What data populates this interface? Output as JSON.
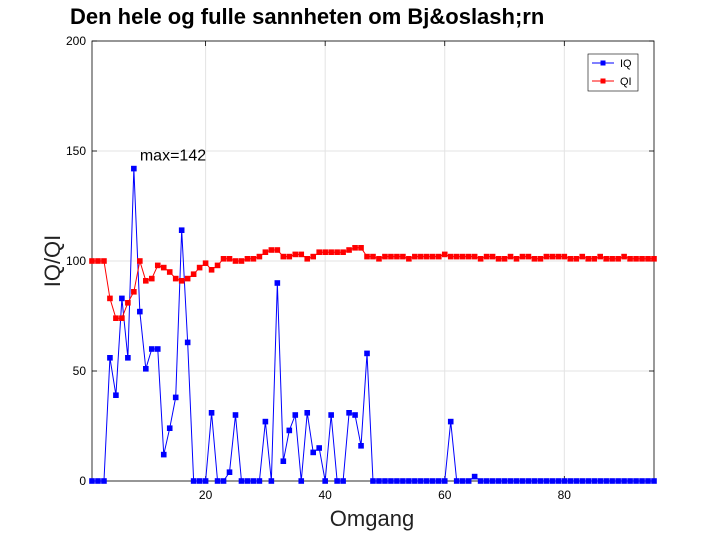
{
  "chart_data": {
    "type": "line",
    "title": "Den hele og fulle sannheten om Bj&oslash;rn",
    "xlabel": "Omgang",
    "ylabel": "IQ/QI",
    "xlim": [
      1,
      95
    ],
    "ylim": [
      0,
      200
    ],
    "xticks": [
      20,
      40,
      60,
      80
    ],
    "yticks": [
      0,
      50,
      100,
      150,
      200
    ],
    "grid": true,
    "legend_position": "top-right",
    "annotation": {
      "text": "max=142",
      "x": 8,
      "y": 142
    },
    "series": [
      {
        "name": "IQ",
        "color": "#0000ff",
        "marker": "square",
        "x": [
          1,
          2,
          3,
          4,
          5,
          6,
          7,
          8,
          9,
          10,
          11,
          12,
          13,
          14,
          15,
          16,
          17,
          18,
          19,
          20,
          21,
          22,
          23,
          24,
          25,
          26,
          27,
          28,
          29,
          30,
          31,
          32,
          33,
          34,
          35,
          36,
          37,
          38,
          39,
          40,
          41,
          42,
          43,
          44,
          45,
          46,
          47,
          48,
          49,
          50,
          51,
          52,
          53,
          54,
          55,
          56,
          57,
          58,
          59,
          60,
          61,
          62,
          63,
          64,
          65,
          66,
          67,
          68,
          69,
          70,
          71,
          72,
          73,
          74,
          75,
          76,
          77,
          78,
          79,
          80,
          81,
          82,
          83,
          84,
          85,
          86,
          87,
          88,
          89,
          90,
          91,
          92,
          93,
          94,
          95
        ],
        "values": [
          0,
          0,
          0,
          56,
          39,
          83,
          56,
          142,
          77,
          51,
          60,
          60,
          12,
          24,
          38,
          114,
          63,
          0,
          0,
          0,
          31,
          0,
          0,
          4,
          30,
          0,
          0,
          0,
          0,
          27,
          0,
          90,
          9,
          23,
          30,
          0,
          31,
          13,
          15,
          0,
          30,
          0,
          0,
          31,
          30,
          16,
          58,
          0,
          0,
          0,
          0,
          0,
          0,
          0,
          0,
          0,
          0,
          0,
          0,
          0,
          27,
          0,
          0,
          0,
          2,
          0,
          0,
          0,
          0,
          0,
          0,
          0,
          0,
          0,
          0,
          0,
          0,
          0,
          0,
          0,
          0,
          0,
          0,
          0,
          0,
          0,
          0,
          0,
          0,
          0,
          0,
          0,
          0,
          0,
          0
        ]
      },
      {
        "name": "QI",
        "color": "#ff0000",
        "marker": "square",
        "x": [
          1,
          2,
          3,
          4,
          5,
          6,
          7,
          8,
          9,
          10,
          11,
          12,
          13,
          14,
          15,
          16,
          17,
          18,
          19,
          20,
          21,
          22,
          23,
          24,
          25,
          26,
          27,
          28,
          29,
          30,
          31,
          32,
          33,
          34,
          35,
          36,
          37,
          38,
          39,
          40,
          41,
          42,
          43,
          44,
          45,
          46,
          47,
          48,
          49,
          50,
          51,
          52,
          53,
          54,
          55,
          56,
          57,
          58,
          59,
          60,
          61,
          62,
          63,
          64,
          65,
          66,
          67,
          68,
          69,
          70,
          71,
          72,
          73,
          74,
          75,
          76,
          77,
          78,
          79,
          80,
          81,
          82,
          83,
          84,
          85,
          86,
          87,
          88,
          89,
          90,
          91,
          92,
          93,
          94,
          95
        ],
        "values": [
          100,
          100,
          100,
          83,
          74,
          74,
          81,
          86,
          100,
          91,
          92,
          98,
          97,
          95,
          92,
          91,
          92,
          94,
          97,
          99,
          96,
          98,
          101,
          101,
          100,
          100,
          101,
          101,
          102,
          104,
          105,
          105,
          102,
          102,
          103,
          103,
          101,
          102,
          104,
          104,
          104,
          104,
          104,
          105,
          106,
          106,
          102,
          102,
          101,
          102,
          102,
          102,
          102,
          101,
          102,
          102,
          102,
          102,
          102,
          103,
          102,
          102,
          102,
          102,
          102,
          101,
          102,
          102,
          101,
          101,
          102,
          101,
          102,
          102,
          101,
          101,
          102,
          102,
          102,
          102,
          101,
          101,
          102,
          101,
          101,
          102,
          101,
          101,
          101,
          102,
          101,
          101,
          101,
          101,
          101
        ]
      }
    ]
  }
}
